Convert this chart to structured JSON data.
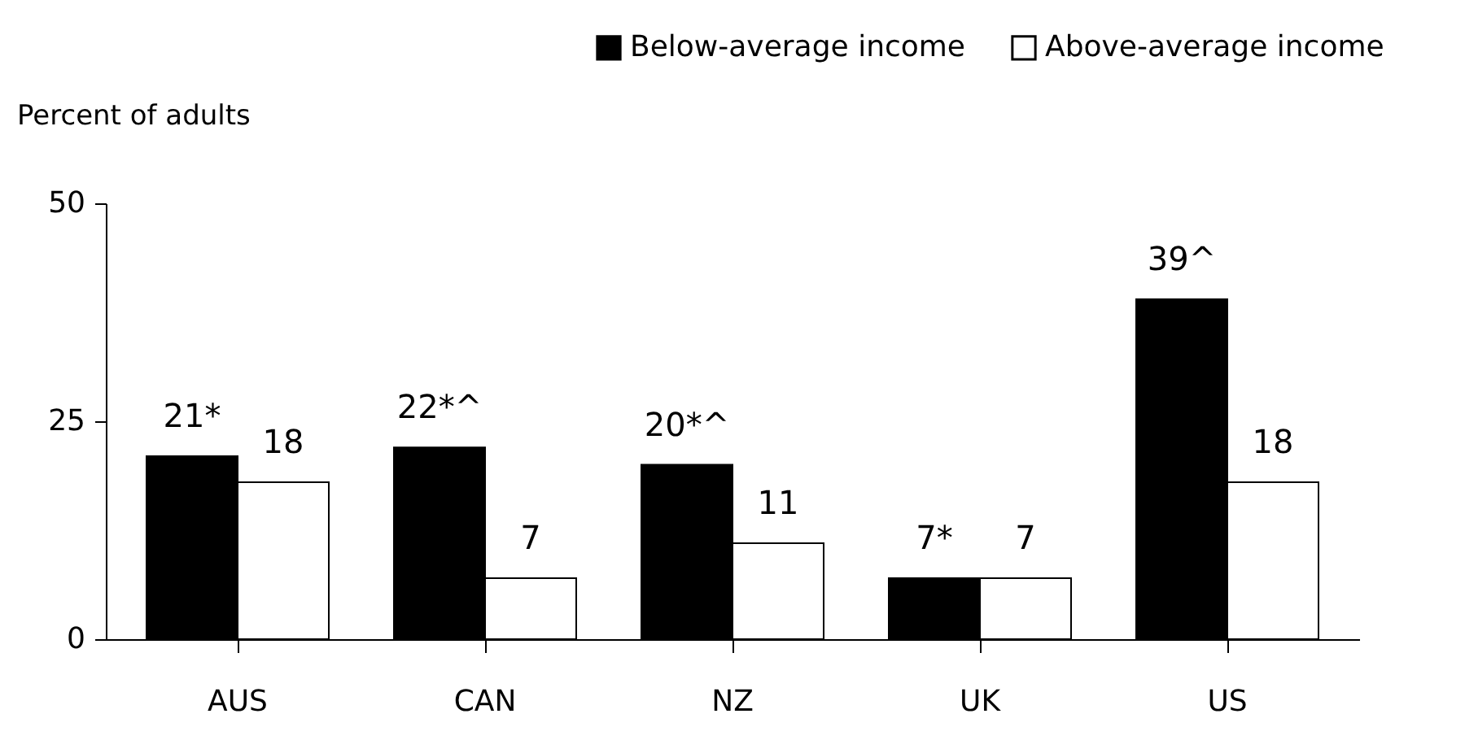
{
  "chart_data": {
    "type": "bar",
    "ylabel": "Percent of adults",
    "categories": [
      "AUS",
      "CAN",
      "NZ",
      "UK",
      "US"
    ],
    "series": [
      {
        "name": "Below-average income",
        "color": "#000000",
        "values": [
          21,
          22,
          20,
          7,
          39
        ],
        "value_labels": [
          "21*",
          "22*^",
          "20*^",
          "7*",
          "39^"
        ]
      },
      {
        "name": "Above-average income",
        "color": "#ffffff",
        "values": [
          18,
          7,
          11,
          7,
          18
        ],
        "value_labels": [
          "18",
          "7",
          "11",
          "7",
          "18"
        ]
      }
    ],
    "ylim": [
      0,
      50
    ],
    "yticks": [
      0,
      25,
      50
    ],
    "grid": false,
    "legend": "top right"
  }
}
